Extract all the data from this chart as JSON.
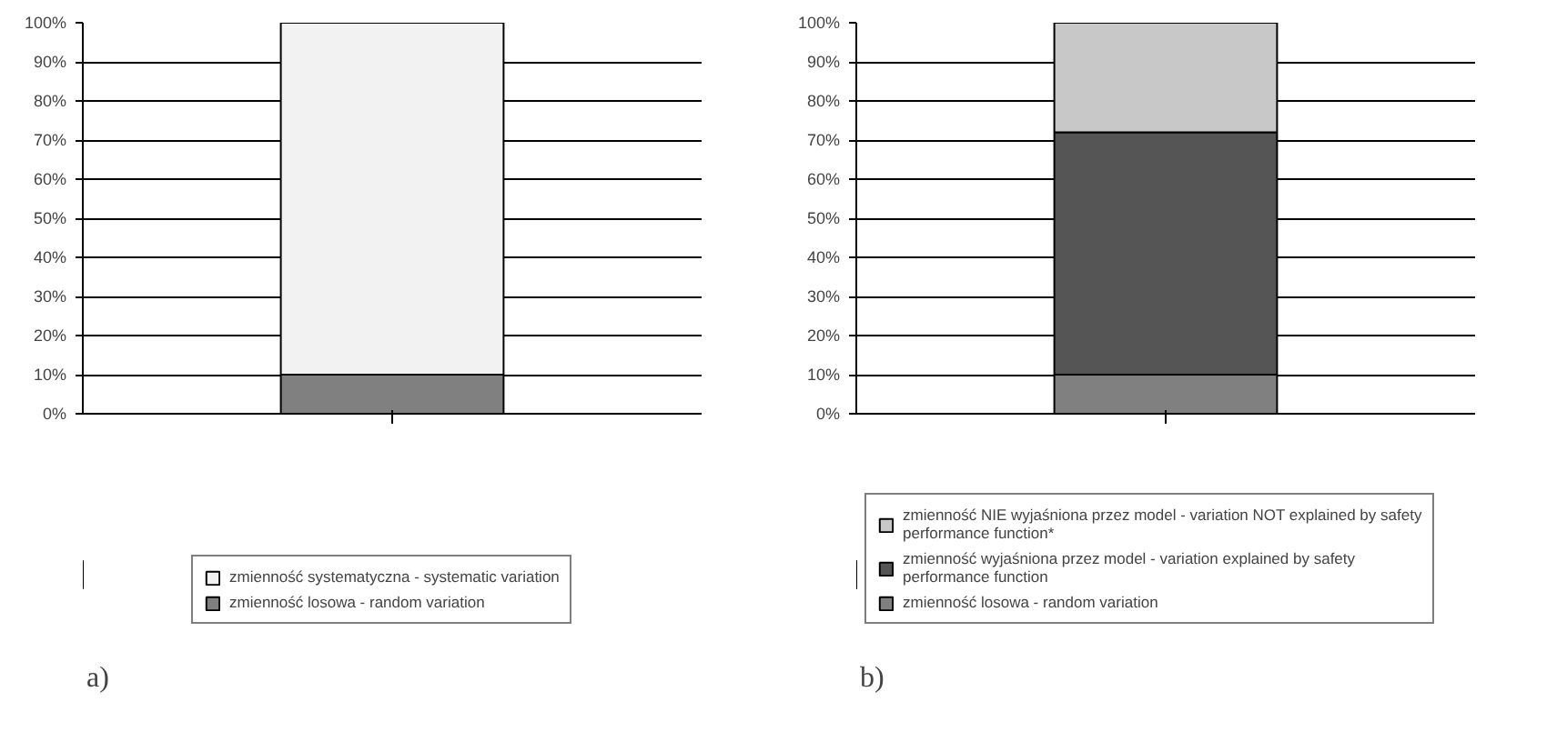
{
  "chart_data": [
    {
      "type": "bar",
      "stacked": true,
      "categories": [
        null
      ],
      "series": [
        {
          "name": "zmienność losowa - random variation",
          "color": "#808080",
          "values": [
            10
          ]
        },
        {
          "name": "zmienność systematyczna - systematic variation",
          "color": "#f2f2f2",
          "values": [
            90
          ]
        }
      ],
      "ylim": [
        0,
        100
      ],
      "yticks": [
        {
          "value": 0,
          "label": "0%"
        },
        {
          "value": 10,
          "label": "10%"
        },
        {
          "value": 20,
          "label": "20%"
        },
        {
          "value": 30,
          "label": "30%"
        },
        {
          "value": 40,
          "label": "40%"
        },
        {
          "value": 50,
          "label": "50%"
        },
        {
          "value": 60,
          "label": "60%"
        },
        {
          "value": 70,
          "label": "70%"
        },
        {
          "value": 80,
          "label": "80%"
        },
        {
          "value": 90,
          "label": "90%"
        },
        {
          "value": 100,
          "label": "100%"
        }
      ],
      "grid": "y",
      "legend": "bottom",
      "annotations": [
        "a)"
      ]
    },
    {
      "type": "bar",
      "stacked": true,
      "categories": [
        null
      ],
      "series": [
        {
          "name": "zmienność losowa - random variation",
          "color": "#808080",
          "values": [
            10
          ]
        },
        {
          "name": "zmienność wyjaśniona przez model - variation explained by safety performance function",
          "color": "#555555",
          "values": [
            62
          ]
        },
        {
          "name": "zmienność NIE wyjaśniona przez model - variation NOT explained by safety performance function*",
          "color": "#c8c8c8",
          "values": [
            28
          ]
        }
      ],
      "ylim": [
        0,
        100
      ],
      "yticks": [
        {
          "value": 0,
          "label": "0%"
        },
        {
          "value": 10,
          "label": "10%"
        },
        {
          "value": 20,
          "label": "20%"
        },
        {
          "value": 30,
          "label": "30%"
        },
        {
          "value": 40,
          "label": "40%"
        },
        {
          "value": 50,
          "label": "50%"
        },
        {
          "value": 60,
          "label": "60%"
        },
        {
          "value": 70,
          "label": "70%"
        },
        {
          "value": 80,
          "label": "80%"
        },
        {
          "value": 90,
          "label": "90%"
        },
        {
          "value": 100,
          "label": "100%"
        }
      ],
      "grid": "y",
      "legend": "bottom",
      "annotations": [
        "b)"
      ]
    }
  ]
}
